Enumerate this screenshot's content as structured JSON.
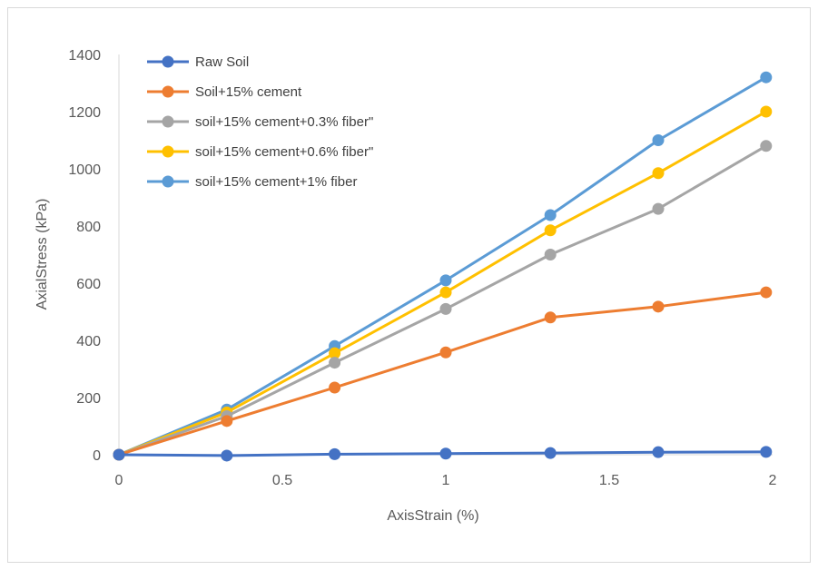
{
  "chart_data": {
    "type": "line",
    "title": "",
    "xlabel": "AxisStrain (%)",
    "ylabel": "AxialStress (kPa)",
    "xlim": [
      0,
      2
    ],
    "ylim": [
      0,
      1400
    ],
    "xticks": [
      0,
      0.5,
      1,
      1.5,
      2
    ],
    "xtick_labels": [
      "0",
      "0.5",
      "1",
      "1.5",
      "2"
    ],
    "yticks": [
      0,
      200,
      400,
      600,
      800,
      1000,
      1200,
      1400
    ],
    "ytick_labels": [
      "0",
      "200",
      "400",
      "600",
      "800",
      "1000",
      "1200",
      "1400"
    ],
    "grid": false,
    "legend_position": "top-left",
    "x": [
      0,
      0.33,
      0.66,
      1.0,
      1.32,
      1.65,
      1.98
    ],
    "series": [
      {
        "name": "Raw Soil",
        "color": "#4472C4",
        "values": [
          0,
          -3,
          2,
          4,
          6,
          9,
          10
        ]
      },
      {
        "name": "Soil+15% cement",
        "color": "#ED7D31",
        "values": [
          0,
          118,
          235,
          358,
          480,
          518,
          568
        ]
      },
      {
        "name": "soil+15% cement+0.3% fiber\"",
        "color": "#A5A5A5",
        "values": [
          0,
          135,
          322,
          510,
          700,
          860,
          1080
        ]
      },
      {
        "name": "soil+15% cement+0.6% fiber\"",
        "color": "#FFC000",
        "values": [
          0,
          148,
          355,
          568,
          785,
          985,
          1200
        ]
      },
      {
        "name": "soil+15% cement+1% fiber",
        "color": "#5B9BD5",
        "values": [
          0,
          158,
          380,
          610,
          838,
          1100,
          1320
        ]
      }
    ]
  }
}
